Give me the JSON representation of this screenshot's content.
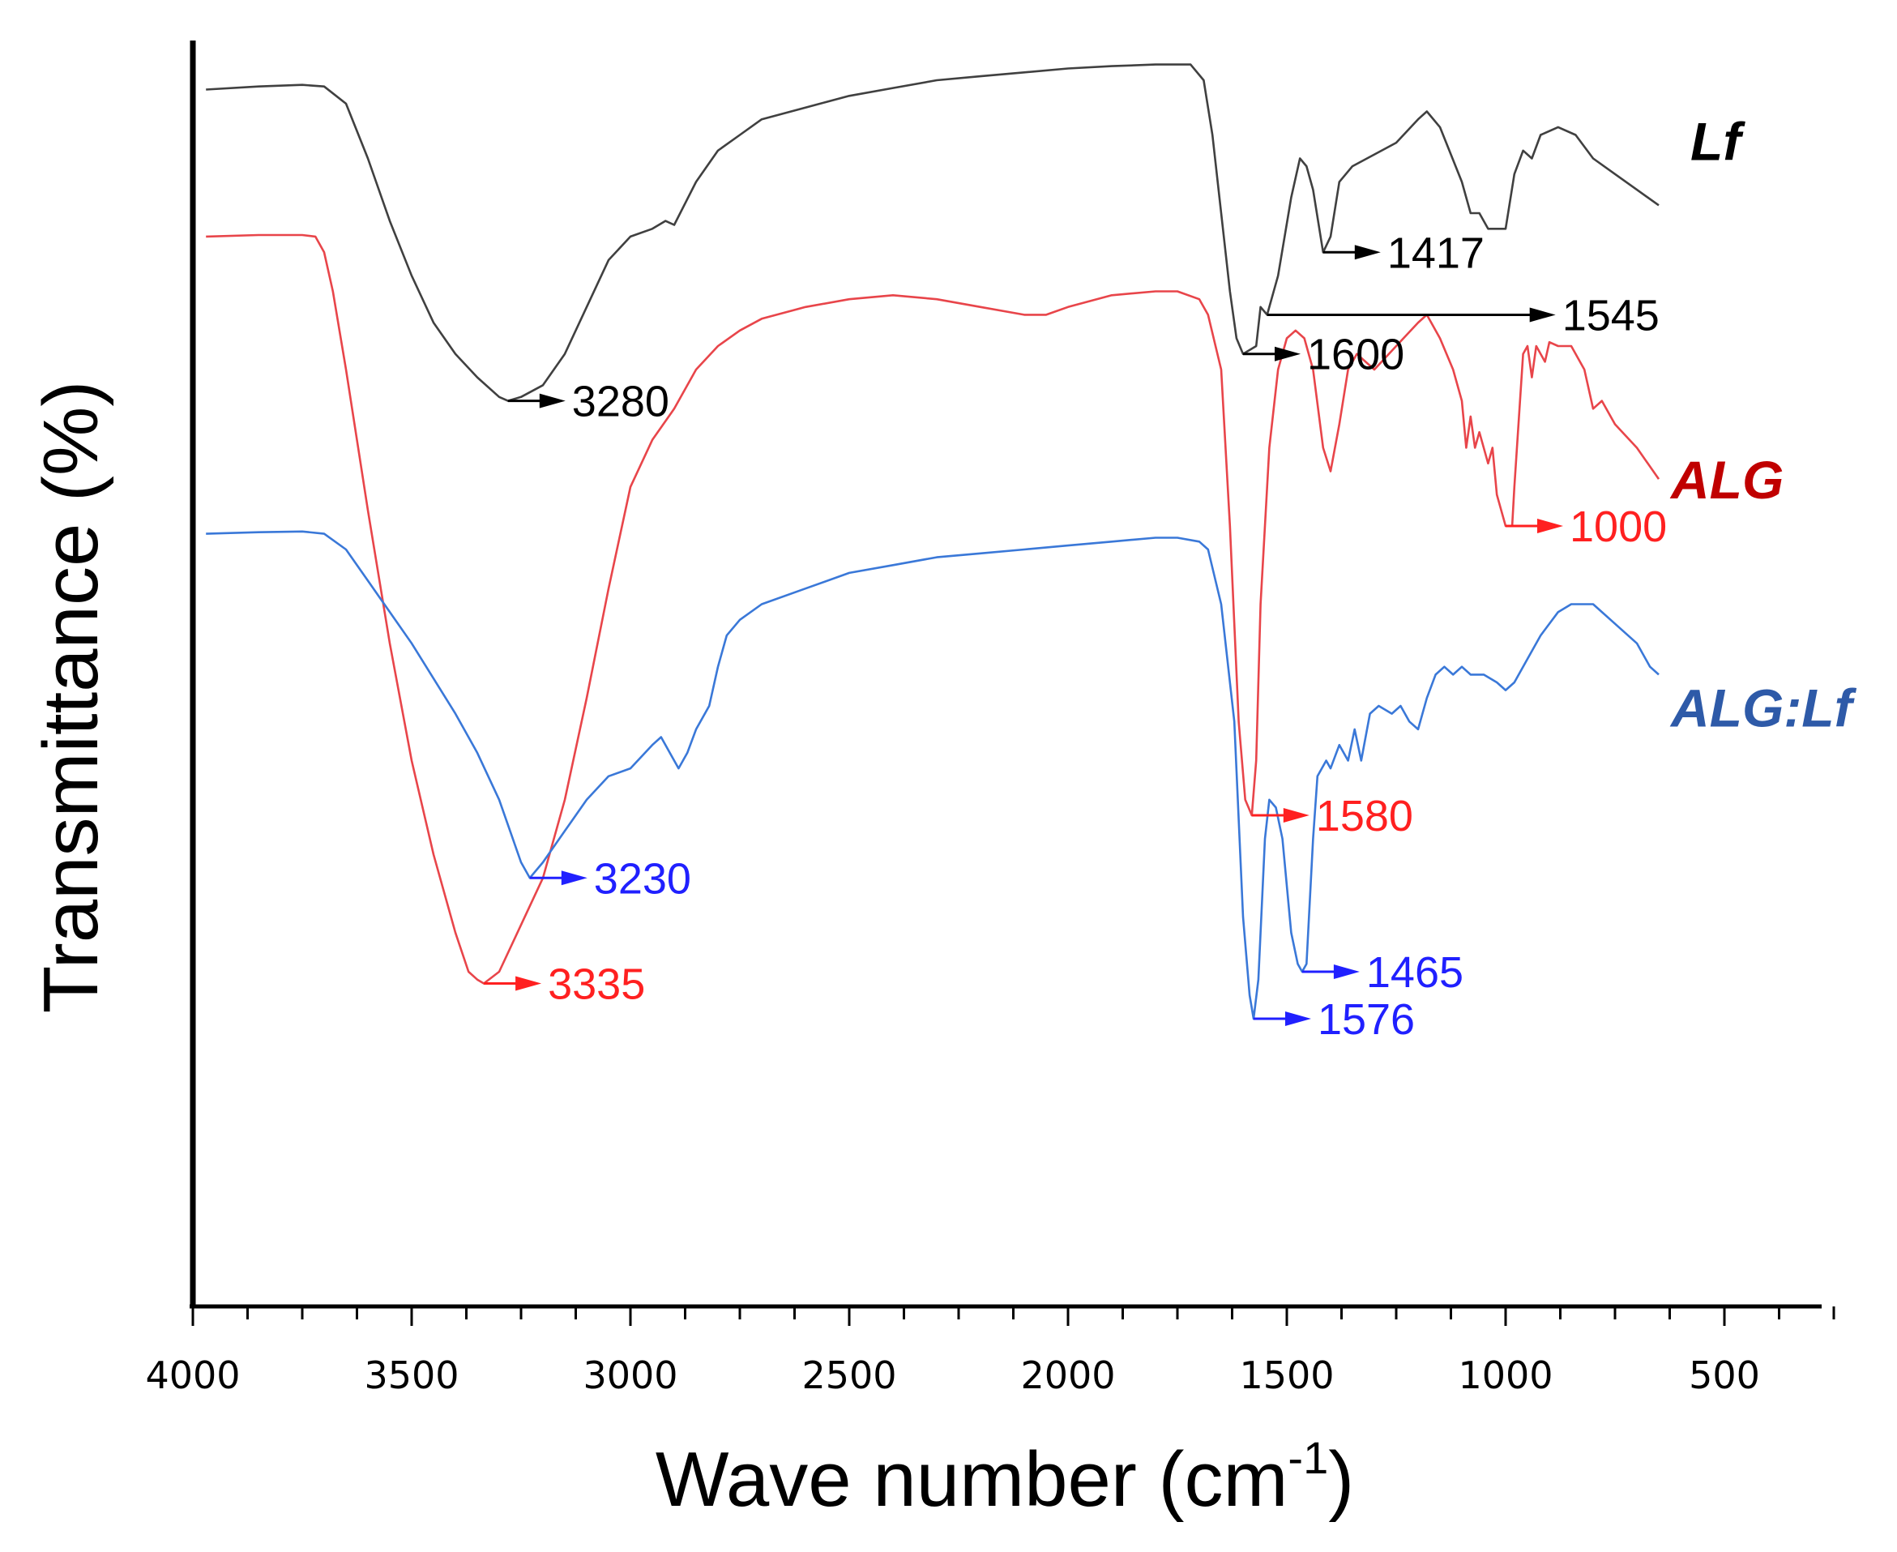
{
  "chart_data": {
    "type": "line",
    "title": "",
    "xlabel": "Wave number (cm",
    "xlabel_sup": "-1",
    "xlabel_close": ")",
    "ylabel": "Transmittance (%)",
    "xlim": [
      4000,
      250
    ],
    "x_reversed": true,
    "xticks": [
      4000,
      3500,
      3000,
      2500,
      2000,
      1500,
      1000,
      500
    ],
    "xticks_minor_step": 125,
    "grid": false,
    "legend": "inline labels at right end of each curve",
    "yticks": "none",
    "series": [
      {
        "name": "Lf",
        "color": "#404040",
        "label_color": "#000000",
        "points": [
          [
            3970,
            0.958
          ],
          [
            3850,
            0.962
          ],
          [
            3750,
            0.964
          ],
          [
            3700,
            0.962
          ],
          [
            3650,
            0.94
          ],
          [
            3600,
            0.87
          ],
          [
            3550,
            0.79
          ],
          [
            3500,
            0.72
          ],
          [
            3450,
            0.66
          ],
          [
            3400,
            0.62
          ],
          [
            3350,
            0.59
          ],
          [
            3300,
            0.565
          ],
          [
            3280,
            0.56
          ],
          [
            3250,
            0.565
          ],
          [
            3200,
            0.58
          ],
          [
            3150,
            0.62
          ],
          [
            3100,
            0.68
          ],
          [
            3050,
            0.74
          ],
          [
            3000,
            0.77
          ],
          [
            2950,
            0.78
          ],
          [
            2920,
            0.79
          ],
          [
            2900,
            0.785
          ],
          [
            2850,
            0.84
          ],
          [
            2800,
            0.88
          ],
          [
            2750,
            0.9
          ],
          [
            2700,
            0.92
          ],
          [
            2600,
            0.935
          ],
          [
            2500,
            0.95
          ],
          [
            2400,
            0.96
          ],
          [
            2300,
            0.97
          ],
          [
            2200,
            0.975
          ],
          [
            2100,
            0.98
          ],
          [
            2000,
            0.985
          ],
          [
            1900,
            0.988
          ],
          [
            1800,
            0.99
          ],
          [
            1720,
            0.99
          ],
          [
            1690,
            0.97
          ],
          [
            1670,
            0.9
          ],
          [
            1650,
            0.8
          ],
          [
            1630,
            0.7
          ],
          [
            1615,
            0.64
          ],
          [
            1600,
            0.62
          ],
          [
            1585,
            0.625
          ],
          [
            1570,
            0.63
          ],
          [
            1560,
            0.68
          ],
          [
            1545,
            0.67
          ],
          [
            1520,
            0.72
          ],
          [
            1490,
            0.82
          ],
          [
            1470,
            0.87
          ],
          [
            1455,
            0.86
          ],
          [
            1440,
            0.83
          ],
          [
            1417,
            0.75
          ],
          [
            1400,
            0.77
          ],
          [
            1380,
            0.84
          ],
          [
            1350,
            0.86
          ],
          [
            1300,
            0.875
          ],
          [
            1250,
            0.89
          ],
          [
            1200,
            0.92
          ],
          [
            1180,
            0.93
          ],
          [
            1150,
            0.91
          ],
          [
            1100,
            0.84
          ],
          [
            1080,
            0.8
          ],
          [
            1060,
            0.8
          ],
          [
            1040,
            0.78
          ],
          [
            1020,
            0.78
          ],
          [
            1000,
            0.78
          ],
          [
            980,
            0.85
          ],
          [
            960,
            0.88
          ],
          [
            940,
            0.87
          ],
          [
            920,
            0.9
          ],
          [
            880,
            0.91
          ],
          [
            840,
            0.9
          ],
          [
            800,
            0.87
          ],
          [
            750,
            0.85
          ],
          [
            700,
            0.83
          ],
          [
            650,
            0.81
          ]
        ]
      },
      {
        "name": "ALG",
        "color": "#e8454a",
        "label_color": "#c00000",
        "points": [
          [
            3970,
            0.77
          ],
          [
            3850,
            0.772
          ],
          [
            3750,
            0.772
          ],
          [
            3720,
            0.77
          ],
          [
            3700,
            0.75
          ],
          [
            3680,
            0.7
          ],
          [
            3650,
            0.6
          ],
          [
            3600,
            0.42
          ],
          [
            3550,
            0.25
          ],
          [
            3500,
            0.1
          ],
          [
            3450,
            -0.02
          ],
          [
            3400,
            -0.12
          ],
          [
            3370,
            -0.17
          ],
          [
            3350,
            -0.18
          ],
          [
            3335,
            -0.185
          ],
          [
            3300,
            -0.17
          ],
          [
            3250,
            -0.11
          ],
          [
            3200,
            -0.05
          ],
          [
            3150,
            0.05
          ],
          [
            3100,
            0.18
          ],
          [
            3050,
            0.32
          ],
          [
            3000,
            0.45
          ],
          [
            2950,
            0.51
          ],
          [
            2900,
            0.55
          ],
          [
            2850,
            0.6
          ],
          [
            2800,
            0.63
          ],
          [
            2750,
            0.65
          ],
          [
            2700,
            0.665
          ],
          [
            2600,
            0.68
          ],
          [
            2500,
            0.69
          ],
          [
            2400,
            0.695
          ],
          [
            2300,
            0.69
          ],
          [
            2200,
            0.68
          ],
          [
            2100,
            0.67
          ],
          [
            2050,
            0.67
          ],
          [
            2000,
            0.68
          ],
          [
            1900,
            0.695
          ],
          [
            1800,
            0.7
          ],
          [
            1750,
            0.7
          ],
          [
            1700,
            0.69
          ],
          [
            1680,
            0.67
          ],
          [
            1650,
            0.6
          ],
          [
            1630,
            0.4
          ],
          [
            1610,
            0.15
          ],
          [
            1595,
            0.05
          ],
          [
            1580,
            0.03
          ],
          [
            1570,
            0.1
          ],
          [
            1560,
            0.3
          ],
          [
            1540,
            0.5
          ],
          [
            1520,
            0.6
          ],
          [
            1500,
            0.64
          ],
          [
            1480,
            0.65
          ],
          [
            1460,
            0.64
          ],
          [
            1440,
            0.6
          ],
          [
            1417,
            0.5
          ],
          [
            1400,
            0.47
          ],
          [
            1380,
            0.53
          ],
          [
            1360,
            0.6
          ],
          [
            1340,
            0.62
          ],
          [
            1320,
            0.61
          ],
          [
            1300,
            0.6
          ],
          [
            1250,
            0.63
          ],
          [
            1200,
            0.66
          ],
          [
            1180,
            0.67
          ],
          [
            1150,
            0.64
          ],
          [
            1120,
            0.6
          ],
          [
            1100,
            0.56
          ],
          [
            1090,
            0.5
          ],
          [
            1080,
            0.54
          ],
          [
            1070,
            0.5
          ],
          [
            1060,
            0.52
          ],
          [
            1040,
            0.48
          ],
          [
            1030,
            0.5
          ],
          [
            1020,
            0.44
          ],
          [
            1010,
            0.42
          ],
          [
            1000,
            0.4
          ],
          [
            985,
            0.4
          ],
          [
            980,
            0.45
          ],
          [
            960,
            0.62
          ],
          [
            950,
            0.63
          ],
          [
            940,
            0.59
          ],
          [
            930,
            0.63
          ],
          [
            910,
            0.61
          ],
          [
            900,
            0.635
          ],
          [
            880,
            0.63
          ],
          [
            850,
            0.63
          ],
          [
            820,
            0.6
          ],
          [
            800,
            0.55
          ],
          [
            780,
            0.56
          ],
          [
            750,
            0.53
          ],
          [
            700,
            0.5
          ],
          [
            650,
            0.46
          ]
        ]
      },
      {
        "name": "ALG:Lf",
        "color": "#3a78d8",
        "label_color": "#2e5aa8",
        "points": [
          [
            3970,
            0.39
          ],
          [
            3850,
            0.392
          ],
          [
            3750,
            0.393
          ],
          [
            3700,
            0.39
          ],
          [
            3650,
            0.37
          ],
          [
            3600,
            0.33
          ],
          [
            3500,
            0.25
          ],
          [
            3400,
            0.16
          ],
          [
            3350,
            0.11
          ],
          [
            3300,
            0.05
          ],
          [
            3250,
            -0.03
          ],
          [
            3230,
            -0.05
          ],
          [
            3200,
            -0.03
          ],
          [
            3150,
            0.01
          ],
          [
            3100,
            0.05
          ],
          [
            3050,
            0.08
          ],
          [
            3000,
            0.09
          ],
          [
            2950,
            0.12
          ],
          [
            2930,
            0.13
          ],
          [
            2910,
            0.11
          ],
          [
            2890,
            0.09
          ],
          [
            2870,
            0.11
          ],
          [
            2850,
            0.14
          ],
          [
            2820,
            0.17
          ],
          [
            2800,
            0.22
          ],
          [
            2780,
            0.26
          ],
          [
            2750,
            0.28
          ],
          [
            2700,
            0.3
          ],
          [
            2600,
            0.32
          ],
          [
            2500,
            0.34
          ],
          [
            2400,
            0.35
          ],
          [
            2300,
            0.36
          ],
          [
            2200,
            0.365
          ],
          [
            2100,
            0.37
          ],
          [
            2000,
            0.375
          ],
          [
            1900,
            0.38
          ],
          [
            1800,
            0.385
          ],
          [
            1750,
            0.385
          ],
          [
            1700,
            0.38
          ],
          [
            1680,
            0.37
          ],
          [
            1650,
            0.3
          ],
          [
            1620,
            0.15
          ],
          [
            1600,
            -0.1
          ],
          [
            1585,
            -0.2
          ],
          [
            1576,
            -0.23
          ],
          [
            1565,
            -0.18
          ],
          [
            1550,
            0.0
          ],
          [
            1540,
            0.05
          ],
          [
            1525,
            0.04
          ],
          [
            1510,
            0.0
          ],
          [
            1490,
            -0.12
          ],
          [
            1475,
            -0.16
          ],
          [
            1465,
            -0.17
          ],
          [
            1455,
            -0.16
          ],
          [
            1440,
            0.0
          ],
          [
            1430,
            0.08
          ],
          [
            1410,
            0.1
          ],
          [
            1400,
            0.09
          ],
          [
            1380,
            0.12
          ],
          [
            1360,
            0.1
          ],
          [
            1345,
            0.14
          ],
          [
            1330,
            0.1
          ],
          [
            1310,
            0.16
          ],
          [
            1290,
            0.17
          ],
          [
            1260,
            0.16
          ],
          [
            1240,
            0.17
          ],
          [
            1220,
            0.15
          ],
          [
            1200,
            0.14
          ],
          [
            1180,
            0.18
          ],
          [
            1160,
            0.21
          ],
          [
            1140,
            0.22
          ],
          [
            1120,
            0.21
          ],
          [
            1100,
            0.22
          ],
          [
            1080,
            0.21
          ],
          [
            1050,
            0.21
          ],
          [
            1020,
            0.2
          ],
          [
            1000,
            0.19
          ],
          [
            980,
            0.2
          ],
          [
            950,
            0.23
          ],
          [
            920,
            0.26
          ],
          [
            880,
            0.29
          ],
          [
            850,
            0.3
          ],
          [
            800,
            0.3
          ],
          [
            760,
            0.28
          ],
          [
            700,
            0.25
          ],
          [
            670,
            0.22
          ],
          [
            650,
            0.21
          ]
        ]
      }
    ],
    "annotations": [
      {
        "text": "3280",
        "series": "Lf",
        "x": 3280,
        "y": 0.56,
        "color": "#000000",
        "arrow_color": "#000000"
      },
      {
        "text": "1417",
        "series": "Lf",
        "x": 1417,
        "y": 0.75,
        "color": "#000000",
        "arrow_color": "#000000"
      },
      {
        "text": "1545",
        "series": "Lf",
        "x": 1545,
        "y": 0.67,
        "color": "#000000",
        "arrow_color": "#000000",
        "long_arrow": true
      },
      {
        "text": "1600",
        "series": "Lf",
        "x": 1600,
        "y": 0.62,
        "color": "#000000",
        "arrow_color": "#000000"
      },
      {
        "text": "1000",
        "series": "ALG",
        "x": 1000,
        "y": 0.4,
        "color": "#ff2020",
        "arrow_color": "#ff2020"
      },
      {
        "text": "1580",
        "series": "ALG",
        "x": 1580,
        "y": 0.03,
        "color": "#ff2020",
        "arrow_color": "#ff2020"
      },
      {
        "text": "3335",
        "series": "ALG",
        "x": 3335,
        "y": -0.185,
        "color": "#ff2020",
        "arrow_color": "#ff2020"
      },
      {
        "text": "3230",
        "series": "ALG:Lf",
        "x": 3230,
        "y": -0.05,
        "color": "#2020ff",
        "arrow_color": "#2020ff"
      },
      {
        "text": "1465",
        "series": "ALG:Lf",
        "x": 1465,
        "y": -0.17,
        "color": "#2020ff",
        "arrow_color": "#2020ff"
      },
      {
        "text": "1576",
        "series": "ALG:Lf",
        "x": 1576,
        "y": -0.23,
        "color": "#2020ff",
        "arrow_color": "#2020ff"
      }
    ]
  }
}
